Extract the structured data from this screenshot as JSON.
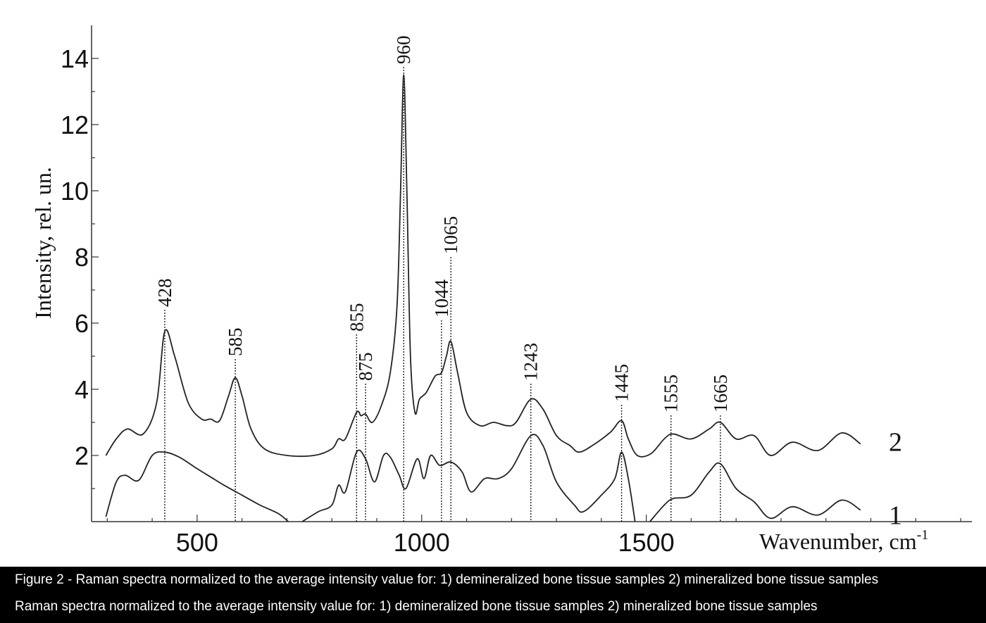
{
  "chart_data": {
    "type": "line",
    "title": "",
    "xlabel": "Wavenumber, cm",
    "xlabel_superscript": "-1",
    "ylabel": "Intensity, rel. un.",
    "xlim": [
      265,
      2225
    ],
    "ylim": [
      0,
      15
    ],
    "x_ticks": [
      500,
      1000,
      1500
    ],
    "y_ticks": [
      2,
      4,
      6,
      8,
      10,
      12,
      14
    ],
    "grid": false,
    "line_color": "#222222",
    "peak_labels": [
      "428",
      "585",
      "855",
      "875",
      "960",
      "1044",
      "1065",
      "1243",
      "1445",
      "1555",
      "1665"
    ],
    "series": [
      {
        "name": "2",
        "points": [
          [
            297,
            2.0
          ],
          [
            320,
            2.5
          ],
          [
            345,
            2.8
          ],
          [
            380,
            2.65
          ],
          [
            410,
            3.6
          ],
          [
            428,
            5.75
          ],
          [
            450,
            5.0
          ],
          [
            480,
            3.6
          ],
          [
            510,
            3.1
          ],
          [
            530,
            3.1
          ],
          [
            550,
            3.05
          ],
          [
            570,
            3.8
          ],
          [
            585,
            4.35
          ],
          [
            600,
            3.8
          ],
          [
            620,
            2.8
          ],
          [
            650,
            2.2
          ],
          [
            700,
            2.0
          ],
          [
            760,
            2.0
          ],
          [
            800,
            2.2
          ],
          [
            815,
            2.5
          ],
          [
            830,
            2.5
          ],
          [
            855,
            3.3
          ],
          [
            865,
            3.2
          ],
          [
            875,
            3.25
          ],
          [
            890,
            3.0
          ],
          [
            910,
            3.5
          ],
          [
            930,
            4.5
          ],
          [
            945,
            6.5
          ],
          [
            953,
            10
          ],
          [
            960,
            13.5
          ],
          [
            967,
            10
          ],
          [
            975,
            5
          ],
          [
            985,
            3.3
          ],
          [
            995,
            3.7
          ],
          [
            1010,
            3.9
          ],
          [
            1030,
            4.4
          ],
          [
            1044,
            4.5
          ],
          [
            1055,
            5.0
          ],
          [
            1065,
            5.45
          ],
          [
            1080,
            4.5
          ],
          [
            1100,
            3.3
          ],
          [
            1130,
            2.9
          ],
          [
            1160,
            3.0
          ],
          [
            1190,
            2.9
          ],
          [
            1210,
            3.0
          ],
          [
            1243,
            3.7
          ],
          [
            1270,
            3.4
          ],
          [
            1300,
            2.6
          ],
          [
            1330,
            2.3
          ],
          [
            1350,
            2.1
          ],
          [
            1380,
            2.3
          ],
          [
            1420,
            2.7
          ],
          [
            1445,
            3.05
          ],
          [
            1460,
            2.5
          ],
          [
            1480,
            2.0
          ],
          [
            1510,
            2.05
          ],
          [
            1540,
            2.5
          ],
          [
            1560,
            2.65
          ],
          [
            1600,
            2.5
          ],
          [
            1640,
            2.8
          ],
          [
            1665,
            3.0
          ],
          [
            1700,
            2.5
          ],
          [
            1740,
            2.6
          ],
          [
            1777,
            2.0
          ],
          [
            1825,
            2.4
          ],
          [
            1882,
            2.15
          ],
          [
            1935,
            2.68
          ],
          [
            1977,
            2.35
          ]
        ]
      },
      {
        "name": "1",
        "segments": [
          [
            [
              297,
              0.15
            ],
            [
              320,
              1.2
            ],
            [
              340,
              1.4
            ],
            [
              370,
              1.25
            ],
            [
              400,
              2.0
            ],
            [
              428,
              2.1
            ],
            [
              460,
              1.95
            ],
            [
              500,
              1.6
            ],
            [
              530,
              1.35
            ],
            [
              560,
              1.1
            ],
            [
              600,
              0.8
            ],
            [
              640,
              0.5
            ],
            [
              680,
              0.25
            ],
            [
              703,
              0.0
            ]
          ],
          [
            [
              734,
              0.0
            ],
            [
              770,
              0.3
            ],
            [
              800,
              0.5
            ],
            [
              815,
              1.1
            ],
            [
              830,
              0.9
            ],
            [
              855,
              2.1
            ],
            [
              875,
              1.9
            ],
            [
              895,
              1.2
            ],
            [
              915,
              2.0
            ],
            [
              930,
              1.95
            ],
            [
              950,
              1.4
            ],
            [
              965,
              1.0
            ],
            [
              990,
              1.9
            ],
            [
              1005,
              1.3
            ],
            [
              1020,
              2.0
            ],
            [
              1040,
              1.7
            ],
            [
              1065,
              1.8
            ],
            [
              1090,
              1.5
            ],
            [
              1110,
              0.9
            ],
            [
              1140,
              1.3
            ],
            [
              1170,
              1.3
            ],
            [
              1200,
              1.6
            ],
            [
              1243,
              2.6
            ],
            [
              1270,
              2.3
            ],
            [
              1300,
              1.2
            ],
            [
              1340,
              0.5
            ],
            [
              1360,
              0.3
            ],
            [
              1400,
              0.8
            ],
            [
              1430,
              1.3
            ],
            [
              1445,
              2.1
            ],
            [
              1460,
              1.3
            ],
            [
              1475,
              0.0
            ]
          ],
          [
            [
              1508,
              0.0
            ],
            [
              1540,
              0.5
            ],
            [
              1560,
              0.7
            ],
            [
              1600,
              0.8
            ],
            [
              1640,
              1.5
            ],
            [
              1665,
              1.75
            ],
            [
              1700,
              1.0
            ],
            [
              1740,
              0.6
            ],
            [
              1777,
              0.1
            ],
            [
              1825,
              0.45
            ],
            [
              1882,
              0.2
            ],
            [
              1935,
              0.65
            ],
            [
              1977,
              0.35
            ]
          ]
        ]
      }
    ]
  },
  "caption": {
    "line1": "Figure 2 - Raman spectra normalized to the average intensity value for: 1) demineralized bone tissue samples 2) mineralized bone tissue samples",
    "line2": "Raman spectra normalized to the average intensity value for: 1) demineralized bone tissue samples 2) mineralized bone tissue samples"
  }
}
